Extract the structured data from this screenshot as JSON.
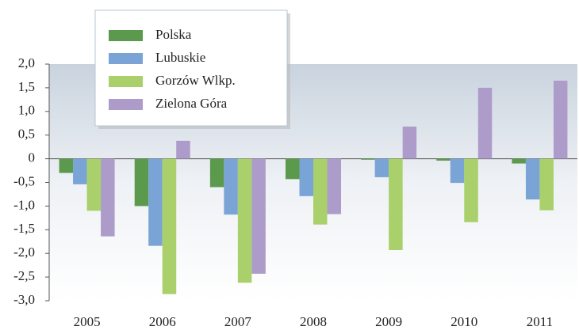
{
  "chart_data": {
    "type": "bar",
    "categories": [
      "2005",
      "2006",
      "2007",
      "2008",
      "2009",
      "2010",
      "2011"
    ],
    "series": [
      {
        "name": "Polska",
        "color": "#5b9a4d",
        "values": [
          -0.3,
          -1.0,
          -0.6,
          -0.43,
          -0.02,
          -0.04,
          -0.1
        ]
      },
      {
        "name": "Lubuskie",
        "color": "#7aa3d6",
        "values": [
          -0.54,
          -1.84,
          -1.18,
          -0.79,
          -0.39,
          -0.51,
          -0.86
        ]
      },
      {
        "name": "Gorzów Wlkp.",
        "color": "#a9d06b",
        "values": [
          -1.1,
          -2.86,
          -2.62,
          -1.39,
          -1.93,
          -1.34,
          -1.09
        ]
      },
      {
        "name": "Zielona Góra",
        "color": "#ad9cc9",
        "values": [
          -1.64,
          0.38,
          -2.43,
          -1.17,
          0.68,
          1.5,
          1.65
        ]
      }
    ],
    "ylim": [
      -3.0,
      2.0
    ],
    "yticks": [
      {
        "value": 2.0,
        "label": "2,0"
      },
      {
        "value": 1.5,
        "label": "1,5"
      },
      {
        "value": 1.0,
        "label": "1,0"
      },
      {
        "value": 0.5,
        "label": "0,5"
      },
      0,
      {
        "value": -0.5,
        "label": "-0,5"
      },
      {
        "value": -1.0,
        "label": "-1,0"
      },
      {
        "value": -1.5,
        "label": "-1,5"
      },
      {
        "value": -2.0,
        "label": "-2,0"
      },
      {
        "value": -2.5,
        "label": "-2,5"
      },
      {
        "value": -3.0,
        "label": "-3,0"
      }
    ],
    "grid": false,
    "legend": "top-left"
  }
}
